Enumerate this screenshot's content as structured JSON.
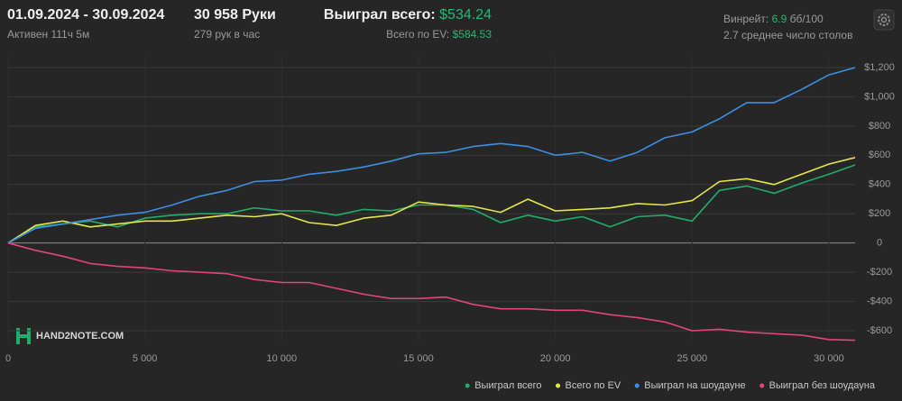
{
  "header": {
    "period": "01.09.2024 - 30.09.2024",
    "active": "Активен 111ч 5м",
    "hands": "30 958 Руки",
    "hands_per_hour": "279 рук в час",
    "won_label": "Выиграл всего:",
    "won_value": "$534.24",
    "ev_label": "Всего по EV:",
    "ev_value": "$584.53",
    "winrate_label": "Винрейт:",
    "winrate_value": "6.9",
    "winrate_unit": "бб/100",
    "tables": "2.7 среднее число столов",
    "watermark": "HAND2NOTE.COM"
  },
  "chart_data": {
    "type": "line",
    "x": [
      0,
      1000,
      2000,
      3000,
      4000,
      5000,
      6000,
      7000,
      8000,
      9000,
      10000,
      11000,
      12000,
      13000,
      14000,
      15000,
      16000,
      17000,
      18000,
      19000,
      20000,
      21000,
      22000,
      23000,
      24000,
      25000,
      26000,
      27000,
      28000,
      29000,
      30000,
      30958
    ],
    "series": [
      {
        "name": "Выиграл всего",
        "color": "#1fae6a",
        "values": [
          0,
          110,
          130,
          150,
          110,
          170,
          190,
          200,
          200,
          240,
          220,
          220,
          190,
          230,
          220,
          260,
          260,
          230,
          140,
          190,
          150,
          180,
          110,
          180,
          190,
          150,
          360,
          390,
          340,
          410,
          470,
          534
        ]
      },
      {
        "name": "Всего по EV",
        "color": "#e6e64a",
        "values": [
          0,
          120,
          150,
          110,
          130,
          150,
          150,
          170,
          190,
          180,
          200,
          140,
          120,
          170,
          190,
          280,
          260,
          250,
          210,
          300,
          220,
          230,
          240,
          270,
          260,
          290,
          420,
          440,
          400,
          470,
          540,
          585
        ]
      },
      {
        "name": "Выиграл на шоудауне",
        "color": "#3d8fe3",
        "values": [
          0,
          100,
          130,
          160,
          190,
          210,
          260,
          320,
          360,
          420,
          430,
          470,
          490,
          520,
          560,
          610,
          620,
          660,
          680,
          660,
          600,
          620,
          560,
          620,
          720,
          760,
          850,
          960,
          960,
          1050,
          1150,
          1200
        ]
      },
      {
        "name": "Выиграл без шоудауна",
        "color": "#e0457b",
        "values": [
          0,
          -50,
          -90,
          -140,
          -160,
          -170,
          -190,
          -200,
          -210,
          -250,
          -270,
          -270,
          -310,
          -350,
          -380,
          -380,
          -370,
          -420,
          -450,
          -450,
          -460,
          -460,
          -490,
          -510,
          -540,
          -600,
          -590,
          -610,
          -620,
          -630,
          -660,
          -665
        ]
      }
    ],
    "xlim": [
      0,
      30958
    ],
    "ylim": [
      -680,
      1280
    ],
    "xticks": [
      0,
      {
        "value": 5000,
        "label": "5 000"
      },
      {
        "value": 10000,
        "label": "10 000"
      },
      {
        "value": 15000,
        "label": "15 000"
      },
      {
        "value": 20000,
        "label": "20 000"
      },
      {
        "value": 25000,
        "label": "25 000"
      },
      {
        "value": 30000,
        "label": "30 000"
      }
    ],
    "yticks": [
      {
        "value": -600,
        "label": "-$600"
      },
      {
        "value": -400,
        "label": "-$400"
      },
      {
        "value": -200,
        "label": "-$200"
      },
      0,
      {
        "value": 200,
        "label": "$200"
      },
      {
        "value": 400,
        "label": "$400"
      },
      {
        "value": 600,
        "label": "$600"
      },
      {
        "value": 800,
        "label": "$800"
      },
      {
        "value": 1000,
        "label": "$1,000"
      },
      {
        "value": 1200,
        "label": "$1,200"
      }
    ],
    "grid": true
  }
}
